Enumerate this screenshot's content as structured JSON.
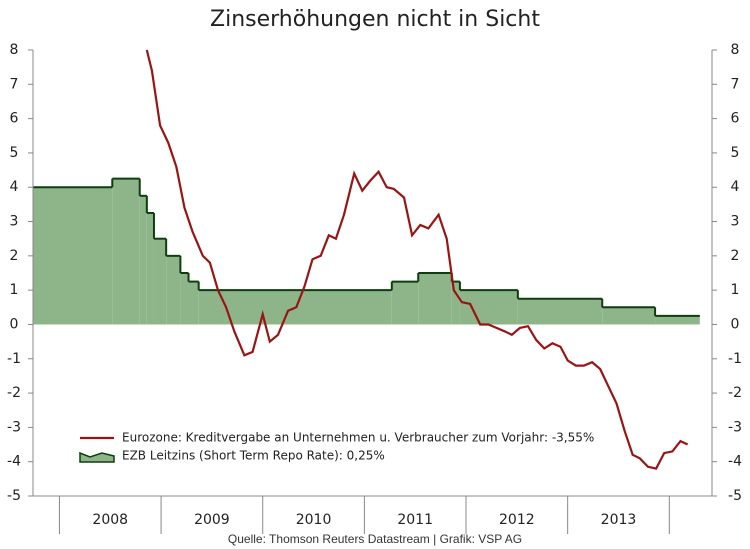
{
  "chart_data": {
    "type": "line",
    "title": "Zinserhöhungen nicht in Sicht",
    "source": "Quelle: Thomson Reuters Datastream | Grafik: VSP AG",
    "xlim": [
      2007.74,
      2014.42
    ],
    "xgrid": [
      2008,
      2009,
      2010,
      2011,
      2012,
      2013,
      2014
    ],
    "xticks": [
      {
        "value": 2008.5,
        "label": "2008"
      },
      {
        "value": 2009.5,
        "label": "2009"
      },
      {
        "value": 2010.5,
        "label": "2010"
      },
      {
        "value": 2011.5,
        "label": "2011"
      },
      {
        "value": 2012.5,
        "label": "2012"
      },
      {
        "value": 2013.5,
        "label": "2013"
      }
    ],
    "ylim": [
      -5,
      8
    ],
    "yticks": [
      -5,
      -4,
      -3,
      -2,
      -1,
      0,
      1,
      2,
      3,
      4,
      5,
      6,
      7,
      8
    ],
    "legend": "lower-left",
    "series": [
      {
        "name": "Eurozone: Kreditvergabe an Unternehmen u. Verbraucher zum Vorjahr: -3,55%",
        "style": "line",
        "color": "#9b1414",
        "x": [
          2008.86,
          2008.91,
          2008.99,
          2009.07,
          2009.15,
          2009.23,
          2009.31,
          2009.41,
          2009.48,
          2009.56,
          2009.64,
          2009.72,
          2009.82,
          2009.9,
          2010.0,
          2010.07,
          2010.15,
          2010.25,
          2010.33,
          2010.41,
          2010.49,
          2010.57,
          2010.65,
          2010.72,
          2010.8,
          2010.9,
          2010.98,
          2011.06,
          2011.14,
          2011.22,
          2011.29,
          2011.39,
          2011.47,
          2011.55,
          2011.63,
          2011.73,
          2011.81,
          2011.88,
          2011.96,
          2012.04,
          2012.14,
          2012.22,
          2012.3,
          2012.38,
          2012.45,
          2012.53,
          2012.61,
          2012.69,
          2012.77,
          2012.85,
          2012.93,
          2013.0,
          2013.08,
          2013.16,
          2013.24,
          2013.32,
          2013.4,
          2013.48,
          2013.56,
          2013.64,
          2013.71,
          2013.79,
          2013.87,
          2013.95,
          2014.03,
          2014.11,
          2014.18
        ],
        "values": [
          8,
          7.4,
          5.8,
          5.3,
          4.6,
          3.4,
          2.7,
          2.0,
          1.8,
          1.0,
          0.5,
          -0.2,
          -0.9,
          -0.8,
          0.3,
          -0.5,
          -0.3,
          0.4,
          0.5,
          1.1,
          1.9,
          2.0,
          2.6,
          2.5,
          3.2,
          4.4,
          3.9,
          4.2,
          4.45,
          4.0,
          3.95,
          3.7,
          2.6,
          2.9,
          2.8,
          3.2,
          2.5,
          1.0,
          0.65,
          0.6,
          0.0,
          0.0,
          -0.1,
          -0.2,
          -0.3,
          -0.1,
          -0.05,
          -0.45,
          -0.7,
          -0.55,
          -0.65,
          -1.05,
          -1.2,
          -1.2,
          -1.1,
          -1.3,
          -1.8,
          -2.3,
          -3.1,
          -3.8,
          -3.9,
          -4.15,
          -4.2,
          -3.75,
          -3.7,
          -3.4,
          -3.5
        ]
      },
      {
        "name": "EZB Leitzins (Short Term Repo Rate): 0,25%",
        "style": "step-area",
        "color": "#0e3d0e",
        "fill": "#8db589",
        "x": [
          2007.74,
          2008.52,
          2008.79,
          2008.86,
          2008.93,
          2009.05,
          2009.19,
          2009.27,
          2009.37,
          2011.27,
          2011.53,
          2011.86,
          2011.94,
          2012.51,
          2013.34,
          2013.86,
          2014.3
        ],
        "values": [
          4.0,
          4.25,
          3.75,
          3.25,
          2.5,
          2.0,
          1.5,
          1.25,
          1.0,
          1.25,
          1.5,
          1.25,
          1.0,
          0.75,
          0.5,
          0.25,
          0.25
        ]
      }
    ]
  }
}
